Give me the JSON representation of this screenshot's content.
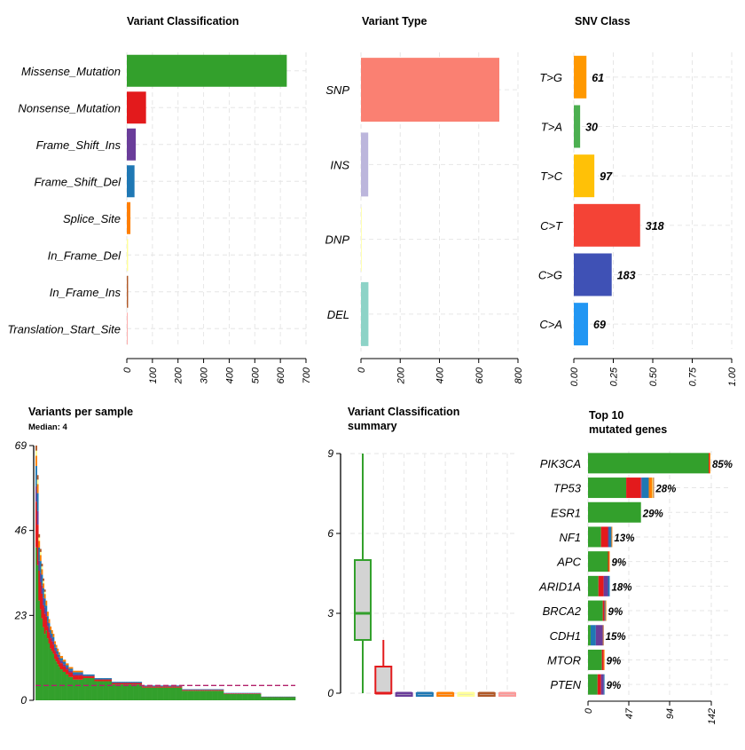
{
  "colors": {
    "Missense_Mutation": "#33a02c",
    "Nonsense_Mutation": "#e31a1c",
    "Frame_Shift_Ins": "#6a3d9a",
    "Frame_Shift_Del": "#1f78b4",
    "Splice_Site": "#ff7f00",
    "In_Frame_Del": "#ffff99",
    "In_Frame_Ins": "#b15928",
    "Translation_Start_Site": "#fb9a99",
    "median_line": "#b2216b",
    "grid": "#e6e6e6",
    "axis": "#000000"
  },
  "chart_data": [
    {
      "id": "variant_classification",
      "type": "bar",
      "orientation": "horizontal",
      "title": "Variant Classification",
      "categories": [
        "Missense_Mutation",
        "Nonsense_Mutation",
        "Frame_Shift_Ins",
        "Frame_Shift_Del",
        "Splice_Site",
        "In_Frame_Del",
        "In_Frame_Ins",
        "Translation_Start_Site"
      ],
      "values": [
        625,
        75,
        35,
        30,
        14,
        5,
        5,
        2
      ],
      "xlim": [
        0,
        700
      ],
      "xticks": [
        "0",
        "100",
        "200",
        "300",
        "400",
        "500",
        "600",
        "700"
      ],
      "grid": true
    },
    {
      "id": "variant_type",
      "type": "bar",
      "orientation": "horizontal",
      "title": "Variant Type",
      "categories": [
        "SNP",
        "INS",
        "DNP",
        "DEL"
      ],
      "values": [
        705,
        37,
        3,
        38
      ],
      "colors": [
        "#fa8072",
        "#bcb6dc",
        "#ffffb3",
        "#8dd3c7"
      ],
      "xlim": [
        0,
        800
      ],
      "xticks": [
        "0",
        "200",
        "400",
        "600",
        "800"
      ],
      "grid": true
    },
    {
      "id": "snv_class",
      "type": "bar",
      "orientation": "horizontal",
      "title": "SNV Class",
      "categories": [
        "T>G",
        "T>A",
        "T>C",
        "C>T",
        "C>G",
        "C>A"
      ],
      "values": [
        0.08,
        0.04,
        0.13,
        0.42,
        0.24,
        0.09
      ],
      "labels": [
        "61",
        "30",
        "97",
        "318",
        "183",
        "69"
      ],
      "colors": [
        "#ff9800",
        "#4caf50",
        "#ffc107",
        "#f44336",
        "#3f51b5",
        "#2196f3"
      ],
      "xlim": [
        0,
        1
      ],
      "xticks": [
        "0.00",
        "0.25",
        "0.50",
        "0.75",
        "1.00"
      ],
      "grid": true
    },
    {
      "id": "variants_per_sample",
      "type": "bar",
      "title": "Variants per sample",
      "subtitle": "Median: 4",
      "ylim": [
        0,
        69
      ],
      "yticks": [
        "0",
        "23",
        "46",
        "69"
      ],
      "median": 4,
      "sample_totals": [
        69,
        61,
        45,
        41,
        37,
        33,
        30,
        27,
        24,
        22,
        20,
        19,
        18,
        16,
        15,
        14,
        13,
        12,
        12,
        11,
        11,
        10,
        10,
        9,
        9,
        9,
        8,
        8,
        8,
        8,
        8,
        8,
        8,
        7,
        7,
        7,
        7,
        7,
        7,
        7,
        7,
        6,
        6,
        6,
        6,
        6,
        6,
        6,
        6,
        6,
        6,
        6,
        6,
        5,
        5,
        5,
        5,
        5,
        5,
        5,
        5,
        5,
        5,
        5,
        5,
        5,
        5,
        5,
        5,
        5,
        5,
        5,
        5,
        5,
        4,
        4,
        4,
        4,
        4,
        4,
        4,
        4,
        4,
        4,
        4,
        4,
        4,
        4,
        4,
        4,
        4,
        4,
        4,
        4,
        4,
        4,
        4,
        4,
        4,
        4,
        4,
        4,
        3,
        3,
        3,
        3,
        3,
        3,
        3,
        3,
        3,
        3,
        3,
        3,
        3,
        3,
        3,
        3,
        3,
        3,
        3,
        3,
        3,
        3,
        3,
        3,
        3,
        3,
        3,
        3,
        3,
        2,
        2,
        2,
        2,
        2,
        2,
        2,
        2,
        2,
        2,
        2,
        2,
        2,
        2,
        2,
        2,
        2,
        2,
        2,
        2,
        2,
        2,
        2,
        2,
        2,
        2,
        1,
        1,
        1,
        1,
        1,
        1,
        1,
        1,
        1,
        1,
        1,
        1,
        1,
        1,
        1,
        1,
        1,
        1,
        1,
        1,
        1,
        1,
        1,
        1
      ]
    },
    {
      "id": "variant_classification_summary",
      "type": "box",
      "title": "Variant Classification",
      "title2": "summary",
      "ylim": [
        0,
        9
      ],
      "yticks": [
        "0",
        "3",
        "6",
        "9"
      ],
      "boxes": [
        {
          "name": "Missense_Mutation",
          "min": 0,
          "q1": 2,
          "median": 3,
          "q3": 5,
          "max": 9
        },
        {
          "name": "Nonsense_Mutation",
          "min": 0,
          "q1": 0,
          "median": 0,
          "q3": 1,
          "max": 2
        },
        {
          "name": "Frame_Shift_Ins",
          "min": 0,
          "q1": 0,
          "median": 0,
          "q3": 0,
          "max": 0
        },
        {
          "name": "Frame_Shift_Del",
          "min": 0,
          "q1": 0,
          "median": 0,
          "q3": 0,
          "max": 0
        },
        {
          "name": "Splice_Site",
          "min": 0,
          "q1": 0,
          "median": 0,
          "q3": 0,
          "max": 0
        },
        {
          "name": "In_Frame_Del",
          "min": 0,
          "q1": 0,
          "median": 0,
          "q3": 0,
          "max": 0
        },
        {
          "name": "In_Frame_Ins",
          "min": 0,
          "q1": 0,
          "median": 0,
          "q3": 0,
          "max": 0
        },
        {
          "name": "Translation_Start_Site",
          "min": 0,
          "q1": 0,
          "median": 0,
          "q3": 0,
          "max": 0
        }
      ]
    },
    {
      "id": "top10_genes",
      "type": "bar",
      "orientation": "horizontal",
      "stacked": true,
      "title": "Top 10",
      "title2": "mutated genes",
      "xlim": [
        0,
        142
      ],
      "xticks": [
        "0",
        "47",
        "94",
        "142"
      ],
      "genes": [
        {
          "gene": "PIK3CA",
          "pct": "85%",
          "segments": [
            {
              "cls": "Missense_Mutation",
              "value": 139
            },
            {
              "cls": "Nonsense_Mutation",
              "value": 1
            },
            {
              "cls": "Splice_Site",
              "value": 1
            }
          ]
        },
        {
          "gene": "TP53",
          "pct": "28%",
          "segments": [
            {
              "cls": "Missense_Mutation",
              "value": 44
            },
            {
              "cls": "Nonsense_Mutation",
              "value": 17
            },
            {
              "cls": "Frame_Shift_Ins",
              "value": 1
            },
            {
              "cls": "Frame_Shift_Del",
              "value": 8
            },
            {
              "cls": "Splice_Site",
              "value": 4
            },
            {
              "cls": "In_Frame_Del",
              "value": 1
            },
            {
              "cls": "In_Frame_Ins",
              "value": 1
            }
          ]
        },
        {
          "gene": "ESR1",
          "pct": "29%",
          "segments": [
            {
              "cls": "Missense_Mutation",
              "value": 61
            }
          ]
        },
        {
          "gene": "NF1",
          "pct": "13%",
          "segments": [
            {
              "cls": "Missense_Mutation",
              "value": 15
            },
            {
              "cls": "Nonsense_Mutation",
              "value": 8
            },
            {
              "cls": "Frame_Shift_Ins",
              "value": 1
            },
            {
              "cls": "Frame_Shift_Del",
              "value": 3
            },
            {
              "cls": "Splice_Site",
              "value": 1
            }
          ]
        },
        {
          "gene": "APC",
          "pct": "9%",
          "segments": [
            {
              "cls": "Missense_Mutation",
              "value": 23
            },
            {
              "cls": "Nonsense_Mutation",
              "value": 1
            },
            {
              "cls": "Splice_Site",
              "value": 1
            }
          ]
        },
        {
          "gene": "ARID1A",
          "pct": "18%",
          "segments": [
            {
              "cls": "Missense_Mutation",
              "value": 12
            },
            {
              "cls": "Nonsense_Mutation",
              "value": 6
            },
            {
              "cls": "Frame_Shift_Ins",
              "value": 5
            },
            {
              "cls": "Frame_Shift_Del",
              "value": 2
            }
          ]
        },
        {
          "gene": "BRCA2",
          "pct": "9%",
          "segments": [
            {
              "cls": "Missense_Mutation",
              "value": 17
            },
            {
              "cls": "Nonsense_Mutation",
              "value": 2
            },
            {
              "cls": "Frame_Shift_Del",
              "value": 1
            },
            {
              "cls": "Splice_Site",
              "value": 1
            }
          ]
        },
        {
          "gene": "CDH1",
          "pct": "15%",
          "segments": [
            {
              "cls": "Missense_Mutation",
              "value": 3
            },
            {
              "cls": "Frame_Shift_Del",
              "value": 6
            },
            {
              "cls": "Frame_Shift_Ins",
              "value": 8
            },
            {
              "cls": "In_Frame_Ins",
              "value": 1
            }
          ]
        },
        {
          "gene": "MTOR",
          "pct": "9%",
          "segments": [
            {
              "cls": "Missense_Mutation",
              "value": 16
            },
            {
              "cls": "Nonsense_Mutation",
              "value": 2
            },
            {
              "cls": "Splice_Site",
              "value": 1
            }
          ]
        },
        {
          "gene": "PTEN",
          "pct": "9%",
          "segments": [
            {
              "cls": "Missense_Mutation",
              "value": 11
            },
            {
              "cls": "Nonsense_Mutation",
              "value": 4
            },
            {
              "cls": "Frame_Shift_Ins",
              "value": 3
            },
            {
              "cls": "Frame_Shift_Del",
              "value": 1
            }
          ]
        }
      ]
    }
  ]
}
